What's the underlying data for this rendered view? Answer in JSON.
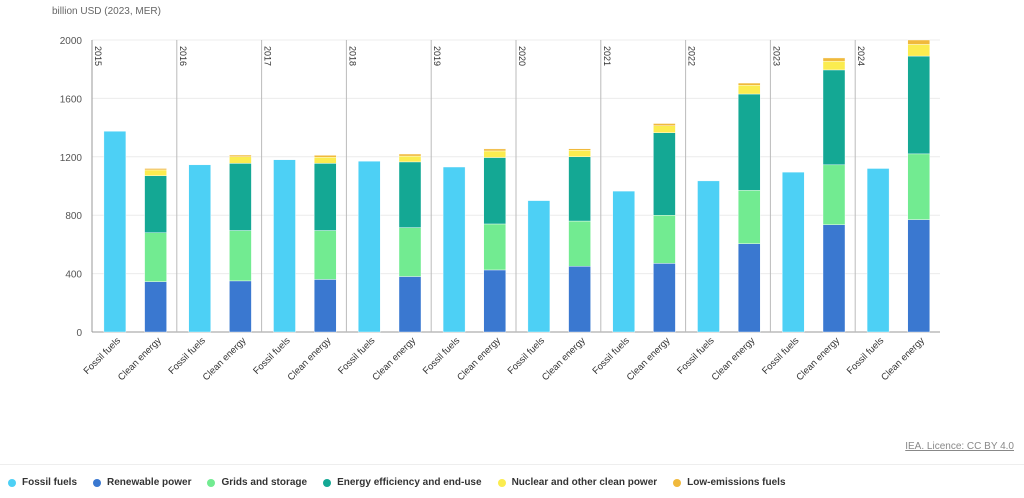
{
  "chart_data": {
    "type": "bar",
    "stacked": true,
    "unit_label": "billion USD (2023, MER)",
    "ylim": [
      0,
      2000
    ],
    "yticks": [
      0,
      400,
      800,
      1200,
      1600,
      2000
    ],
    "grid": true,
    "years": [
      "2015",
      "2016",
      "2017",
      "2018",
      "2019",
      "2020",
      "2021",
      "2022",
      "2023",
      "2024"
    ],
    "bar_labels": [
      "Fossil fuels",
      "Clean energy"
    ],
    "series": [
      {
        "name": "Fossil fuels",
        "color": "#4dd0f5",
        "group": "Fossil fuels",
        "values": [
          1375,
          1145,
          1180,
          1170,
          1130,
          900,
          965,
          1035,
          1095,
          1120
        ]
      },
      {
        "name": "Renewable power",
        "color": "#3a78d0",
        "group": "Clean energy",
        "values": [
          345,
          350,
          360,
          380,
          425,
          450,
          470,
          605,
          735,
          770
        ]
      },
      {
        "name": "Grids and storage",
        "color": "#72eb91",
        "group": "Clean energy",
        "values": [
          335,
          345,
          335,
          335,
          315,
          310,
          330,
          365,
          410,
          450
        ]
      },
      {
        "name": "Energy efficiency and end-use",
        "color": "#14a894",
        "group": "Clean energy",
        "values": [
          390,
          460,
          460,
          450,
          455,
          440,
          565,
          660,
          650,
          670
        ]
      },
      {
        "name": "Nuclear and other clean power",
        "color": "#fbec4f",
        "group": "Clean energy",
        "values": [
          40,
          45,
          42,
          40,
          45,
          45,
          48,
          60,
          60,
          80
        ]
      },
      {
        "name": "Low-emissions fuels",
        "color": "#f0b93c",
        "group": "Clean energy",
        "values": [
          10,
          12,
          13,
          14,
          14,
          10,
          15,
          15,
          22,
          30
        ]
      }
    ]
  },
  "licence": "IEA. Licence: CC BY 4.0"
}
